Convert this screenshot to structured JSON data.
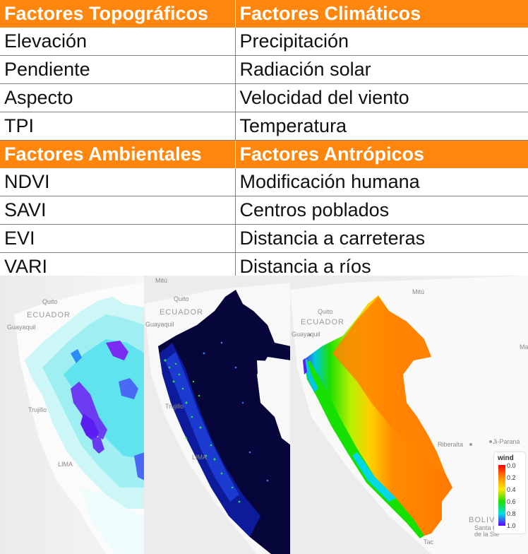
{
  "table": {
    "rows": [
      {
        "kind": "head",
        "left": "Factores Topográficos",
        "right": "Factores Climáticos"
      },
      {
        "kind": "body",
        "left": "Elevación",
        "right": "Precipitación"
      },
      {
        "kind": "body",
        "left": "Pendiente",
        "right": "Radiación solar"
      },
      {
        "kind": "body",
        "left": "Aspecto",
        "right": "Velocidad del viento"
      },
      {
        "kind": "body",
        "left": "TPI",
        "right": "Temperatura"
      },
      {
        "kind": "head",
        "left": "Factores Ambientales",
        "right": "Factores Antrópicos"
      },
      {
        "kind": "body",
        "left": "NDVI",
        "right": "Modificación humana"
      },
      {
        "kind": "body",
        "left": "SAVI",
        "right": "Centros poblados"
      },
      {
        "kind": "body",
        "left": "EVI",
        "right": "Distancia a carreteras"
      },
      {
        "kind": "body",
        "left": "VARI",
        "right": "Distancia a ríos"
      }
    ],
    "header_color": "#ff860d"
  },
  "maps": {
    "labels": {
      "quito": "Quito",
      "ecuador": "ECUADOR",
      "guayaquil": "Guayaquil",
      "trujillo": "Trujillo",
      "lima": "LIMA",
      "mitu": "Mitú",
      "riberalta": "Riberalta",
      "jiparana": "Ji-Paraná",
      "bolivia": "BOLIVIA",
      "santa_cruz": "Santa C",
      "de_la_sierra": "de la Sie",
      "tacna": "Tac",
      "mar": "Mar"
    },
    "legend": {
      "title": "wind",
      "ticks": [
        "0.0",
        "0.2",
        "0.4",
        "0.6",
        "0.8",
        "1.0"
      ]
    }
  }
}
